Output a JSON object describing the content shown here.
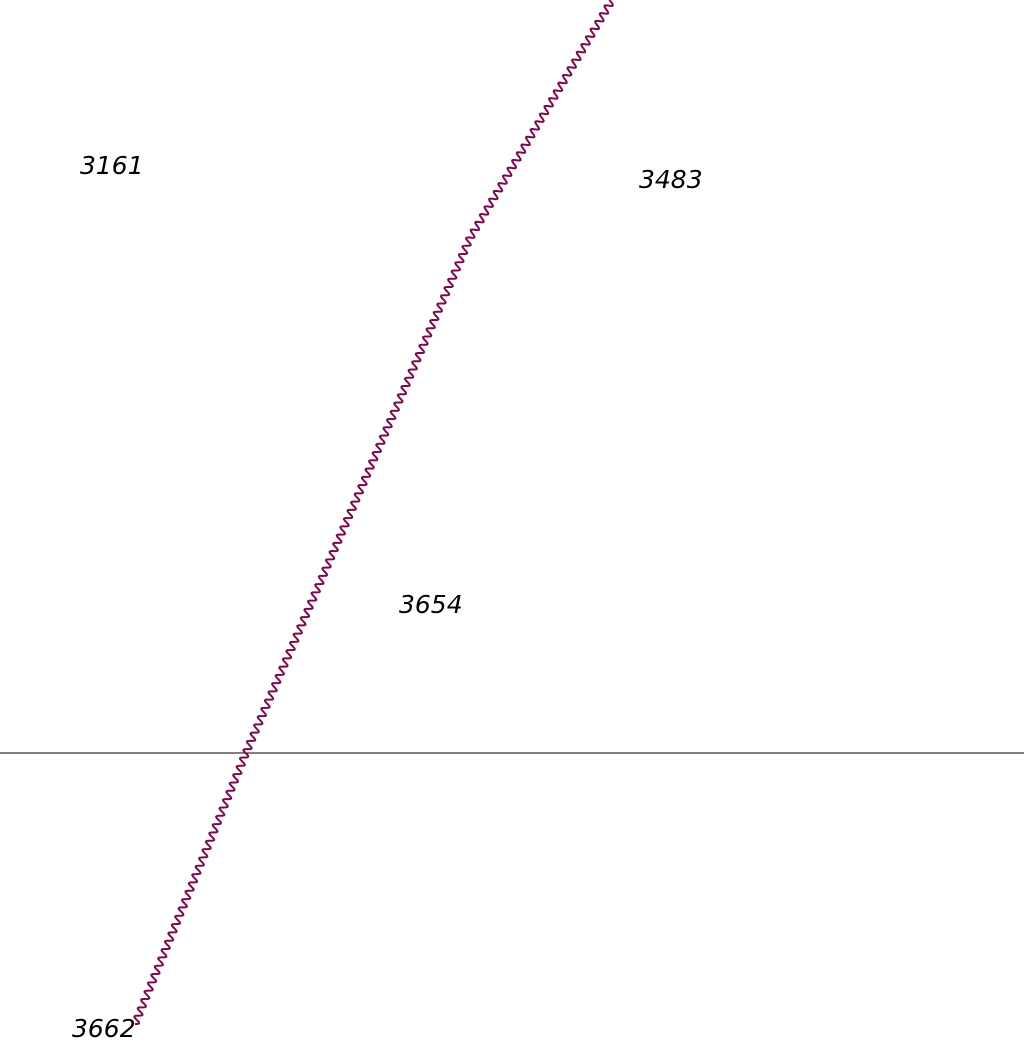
{
  "map": {
    "background_color": "#ffffff",
    "labels": [
      {
        "id": "3161",
        "text": "3161"
      },
      {
        "id": "3483",
        "text": "3483"
      },
      {
        "id": "3654",
        "text": "3654"
      },
      {
        "id": "bottom",
        "text": "3662"
      }
    ],
    "boundary_colors": {
      "wavy_line": "#7a0a4e",
      "straight_line": "#000000"
    }
  }
}
